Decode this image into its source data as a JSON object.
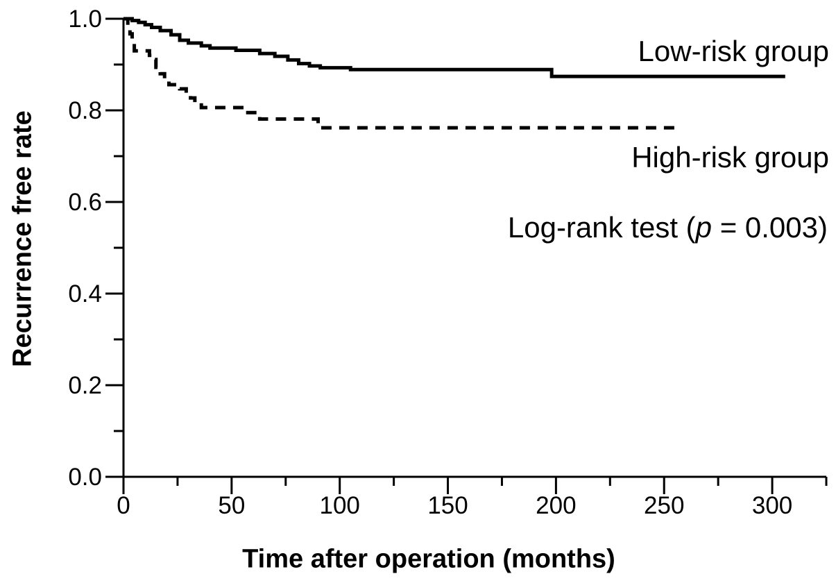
{
  "figure": {
    "background_color": "#ffffff",
    "ink_color": "#000000"
  },
  "chart_data": {
    "type": "line",
    "subtype": "kaplan-meier-step-curves",
    "title": "",
    "xlabel": "Time after operation (months)",
    "ylabel": "Recurrence free rate",
    "xlim": [
      0,
      325
    ],
    "ylim": [
      0.0,
      1.0
    ],
    "grid": false,
    "legend_position": "labels-at-line-ends-right",
    "x_major_ticks": [
      {
        "v": 0,
        "label": "0"
      },
      {
        "v": 50,
        "label": "50"
      },
      {
        "v": 100,
        "label": "100"
      },
      {
        "v": 150,
        "label": "150"
      },
      {
        "v": 200,
        "label": "200"
      },
      {
        "v": 250,
        "label": "250"
      },
      {
        "v": 300,
        "label": "300"
      }
    ],
    "x_minor_ticks": [
      25,
      75,
      125,
      175,
      225,
      275,
      325
    ],
    "y_major_ticks": [
      {
        "v": 1.0,
        "label": "1.0"
      },
      {
        "v": 0.8,
        "label": "0.8"
      },
      {
        "v": 0.6,
        "label": "0.6"
      },
      {
        "v": 0.4,
        "label": "0.4"
      },
      {
        "v": 0.2,
        "label": "0.2"
      },
      {
        "v": 0.0,
        "label": "0.0"
      }
    ],
    "y_minor_ticks": [
      0.9,
      0.7,
      0.5,
      0.3,
      0.1
    ],
    "series": [
      {
        "name": "Low-risk group",
        "style": "solid",
        "points": [
          [
            0,
            1.0
          ],
          [
            4,
            0.996
          ],
          [
            7,
            0.992
          ],
          [
            10,
            0.987
          ],
          [
            13,
            0.981
          ],
          [
            17,
            0.974
          ],
          [
            22,
            0.965
          ],
          [
            26,
            0.953
          ],
          [
            30,
            0.947
          ],
          [
            36,
            0.941
          ],
          [
            40,
            0.936
          ],
          [
            52,
            0.931
          ],
          [
            63,
            0.924
          ],
          [
            70,
            0.918
          ],
          [
            76,
            0.91
          ],
          [
            81,
            0.902
          ],
          [
            86,
            0.897
          ],
          [
            91,
            0.893
          ],
          [
            105,
            0.889
          ],
          [
            198,
            0.874
          ],
          [
            306,
            0.874
          ]
        ]
      },
      {
        "name": "High-risk group",
        "style": "dashed",
        "points": [
          [
            0,
            1.0
          ],
          [
            2,
            0.985
          ],
          [
            3,
            0.967
          ],
          [
            4,
            0.948
          ],
          [
            5,
            0.93
          ],
          [
            12,
            0.92
          ],
          [
            13,
            0.911
          ],
          [
            15,
            0.894
          ],
          [
            17,
            0.88
          ],
          [
            19,
            0.865
          ],
          [
            21,
            0.856
          ],
          [
            26,
            0.847
          ],
          [
            29,
            0.837
          ],
          [
            31,
            0.827
          ],
          [
            33,
            0.816
          ],
          [
            36,
            0.806
          ],
          [
            56,
            0.795
          ],
          [
            63,
            0.781
          ],
          [
            90,
            0.762
          ],
          [
            256,
            0.762
          ]
        ]
      }
    ],
    "annotations": {
      "logrank": {
        "prefix": "Log-rank test (",
        "p_symbol": "p",
        "suffix": " = 0.003)"
      }
    }
  }
}
